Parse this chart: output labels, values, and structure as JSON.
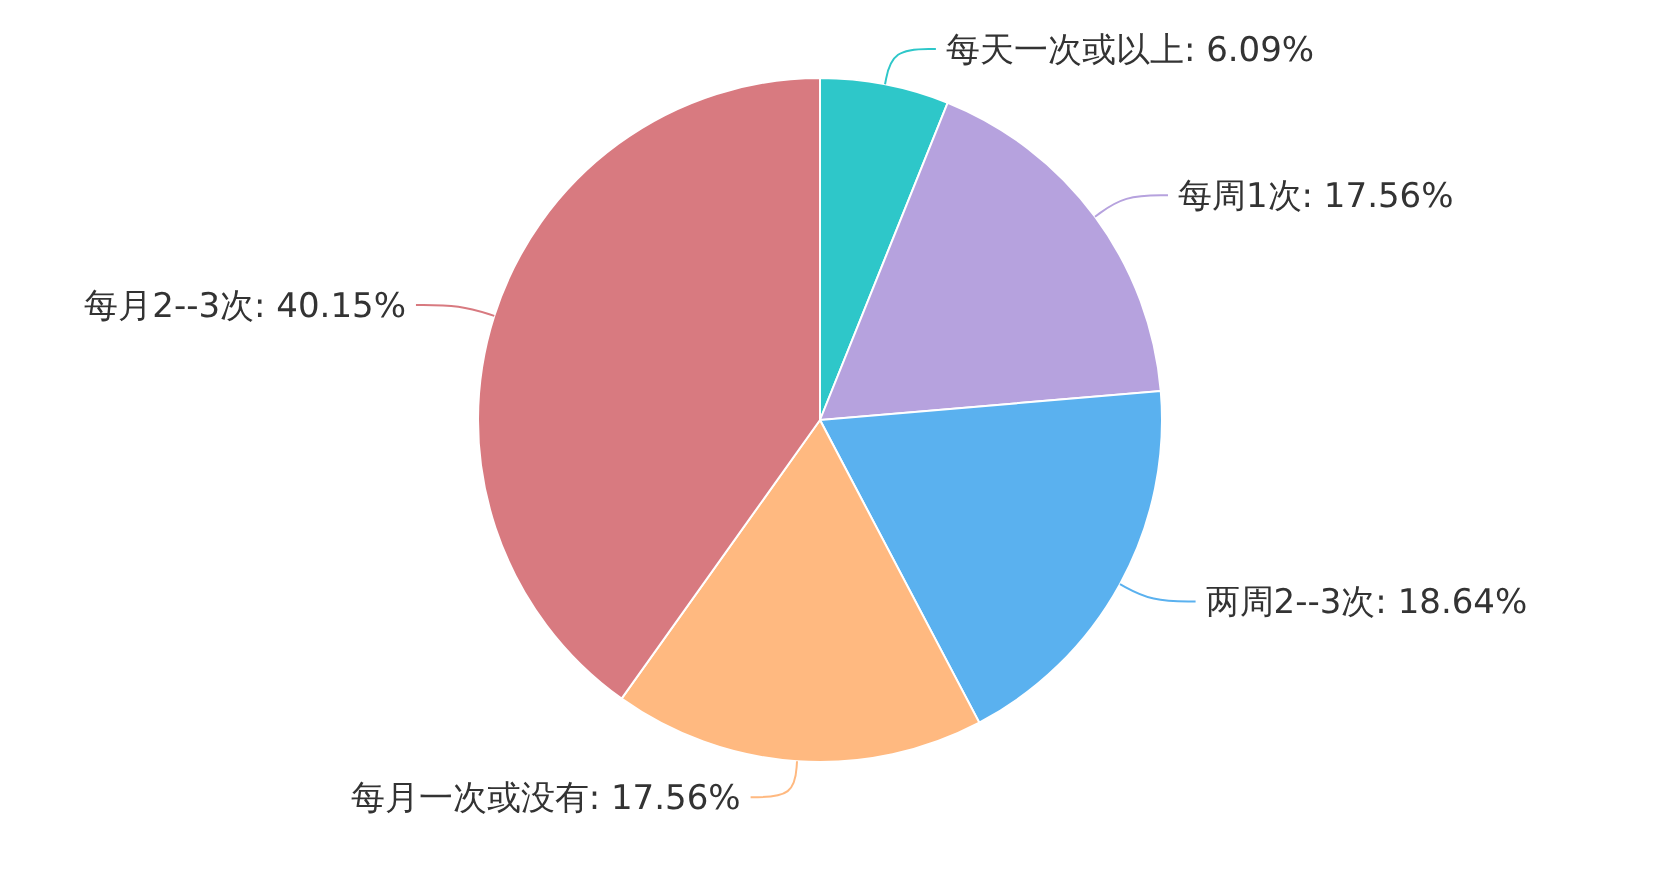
{
  "chart_data": {
    "type": "pie",
    "categories": [
      "每天一次或以上",
      "每周1次",
      "两周2--3次",
      "每月一次或没有",
      "每月2--3次"
    ],
    "values": [
      6.09,
      17.56,
      18.64,
      17.56,
      40.15
    ],
    "value_labels": [
      "6.09%",
      "17.56%",
      "18.64%",
      "17.56%",
      "40.15%"
    ],
    "colors": [
      "#2ec7c9",
      "#b6a2de",
      "#5ab1ef",
      "#ffb980",
      "#d87a80"
    ],
    "legend": false
  }
}
